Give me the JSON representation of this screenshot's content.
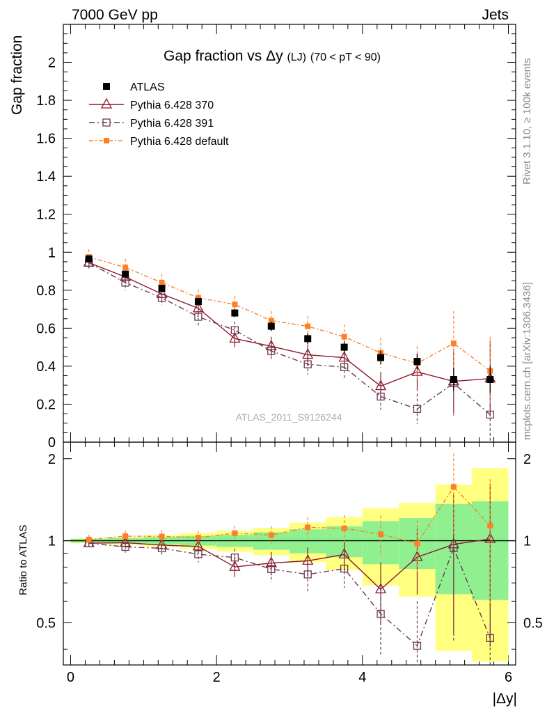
{
  "header": {
    "left": "7000 GeV pp",
    "right": "Jets",
    "side_top": "Rivet 3.1.10, ≥ 100k events",
    "side_bottom": "mcplots.cern.ch [arXiv:1306.3436]",
    "watermark": "ATLAS_2011_S9126244"
  },
  "chart_data": {
    "type": "line",
    "title": "Gap fraction vs Δy (LJ) (70 < pT < 90)",
    "title_main": "Gap fraction vs",
    "title_delta": "Δy",
    "title_lj": "(LJ)",
    "title_range": "(70 < pT <  90)",
    "xlabel": "|Δy|",
    "ylabel": "Gap fraction",
    "ratio_ylabel": "Ratio to ATLAS",
    "xlim": [
      -0.1,
      6.1
    ],
    "ylim": [
      0,
      2.2
    ],
    "ratio_ylim": [
      0.35,
      2.3
    ],
    "x_ticks": [
      "0",
      "2",
      "4",
      "6"
    ],
    "y_ticks": [
      "0",
      "0.2",
      "0.4",
      "0.6",
      "0.8",
      "1",
      "1.2",
      "1.4",
      "1.6",
      "1.8",
      "2"
    ],
    "ratio_ticks": [
      "0.5",
      "1",
      "2"
    ],
    "x": [
      0.25,
      0.75,
      1.25,
      1.75,
      2.25,
      2.75,
      3.25,
      3.75,
      4.25,
      4.75,
      5.25,
      5.75
    ],
    "data": {
      "name": "ATLAS",
      "values": [
        0.965,
        0.885,
        0.81,
        0.74,
        0.68,
        0.61,
        0.545,
        0.5,
        0.445,
        0.425,
        0.33,
        0.33
      ],
      "err": [
        0.012,
        0.015,
        0.018,
        0.02,
        0.022,
        0.025,
        0.028,
        0.03,
        0.035,
        0.04,
        0.06,
        0.07
      ],
      "band_inner": [
        0.015,
        0.02,
        0.025,
        0.03,
        0.035,
        0.045,
        0.055,
        0.065,
        0.08,
        0.09,
        0.12,
        0.13
      ],
      "band_outer": [
        0.02,
        0.03,
        0.04,
        0.05,
        0.06,
        0.07,
        0.09,
        0.11,
        0.14,
        0.16,
        0.2,
        0.28
      ]
    },
    "series": [
      {
        "name": "Pythia 6.428 370",
        "color": "#8b1a2b",
        "marker": "triangle",
        "dash": "none",
        "values": [
          0.945,
          0.87,
          0.78,
          0.705,
          0.545,
          0.505,
          0.46,
          0.445,
          0.295,
          0.37,
          0.32,
          0.335
        ],
        "err": [
          0.03,
          0.035,
          0.035,
          0.04,
          0.045,
          0.05,
          0.055,
          0.06,
          0.075,
          0.1,
          0.17,
          0.2
        ]
      },
      {
        "name": "Pythia 6.428 391",
        "color": "#6b3a4e",
        "marker": "square-open",
        "dash": "8,4,2,4",
        "values": [
          0.945,
          0.84,
          0.76,
          0.66,
          0.59,
          0.48,
          0.41,
          0.395,
          0.24,
          0.175,
          0.31,
          0.145
        ],
        "err": [
          0.03,
          0.04,
          0.04,
          0.045,
          0.045,
          0.05,
          0.055,
          0.06,
          0.07,
          0.08,
          0.17,
          0.16
        ]
      },
      {
        "name": "Pythia 6.428 default",
        "color": "#ff7f27",
        "marker": "square-filled",
        "dash": "6,3,2,3",
        "values": [
          0.975,
          0.92,
          0.84,
          0.76,
          0.725,
          0.64,
          0.61,
          0.555,
          0.47,
          0.415,
          0.52,
          0.375
        ],
        "err": [
          0.04,
          0.045,
          0.045,
          0.045,
          0.045,
          0.05,
          0.055,
          0.065,
          0.08,
          0.09,
          0.17,
          0.18
        ]
      }
    ]
  }
}
